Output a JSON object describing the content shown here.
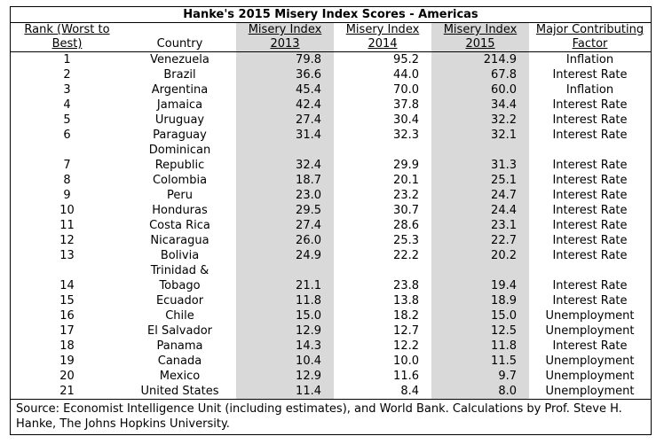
{
  "title": "Hanke's 2015 Misery Index Scores - Americas",
  "headers": {
    "rank": "Rank (Worst to Best)",
    "country": "Country",
    "mi2013": "Misery Index 2013",
    "mi2014": "Misery Index 2014",
    "mi2015": "Misery Index 2015",
    "factor": "Major Contributing Factor"
  },
  "rows": [
    {
      "rank": "1",
      "country": "Venezuela",
      "y2013": "79.8",
      "y2014": "95.2",
      "y2015": "214.9",
      "factor": "Inflation"
    },
    {
      "rank": "2",
      "country": "Brazil",
      "y2013": "36.6",
      "y2014": "44.0",
      "y2015": "67.8",
      "factor": "Interest Rate"
    },
    {
      "rank": "3",
      "country": "Argentina",
      "y2013": "45.4",
      "y2014": "70.0",
      "y2015": "60.0",
      "factor": "Inflation"
    },
    {
      "rank": "4",
      "country": "Jamaica",
      "y2013": "42.4",
      "y2014": "37.8",
      "y2015": "34.4",
      "factor": "Interest Rate"
    },
    {
      "rank": "5",
      "country": "Uruguay",
      "y2013": "27.4",
      "y2014": "30.4",
      "y2015": "32.2",
      "factor": "Interest Rate"
    },
    {
      "rank": "6",
      "country": "Paraguay",
      "y2013": "31.4",
      "y2014": "32.3",
      "y2015": "32.1",
      "factor": "Interest Rate"
    },
    {
      "rank": "7",
      "country": "Dominican Republic",
      "y2013": "32.4",
      "y2014": "29.9",
      "y2015": "31.3",
      "factor": "Interest Rate"
    },
    {
      "rank": "8",
      "country": "Colombia",
      "y2013": "18.7",
      "y2014": "20.1",
      "y2015": "25.1",
      "factor": "Interest Rate"
    },
    {
      "rank": "9",
      "country": "Peru",
      "y2013": "23.0",
      "y2014": "23.2",
      "y2015": "24.7",
      "factor": "Interest Rate"
    },
    {
      "rank": "10",
      "country": "Honduras",
      "y2013": "29.5",
      "y2014": "30.7",
      "y2015": "24.4",
      "factor": "Interest Rate"
    },
    {
      "rank": "11",
      "country": "Costa Rica",
      "y2013": "27.4",
      "y2014": "28.6",
      "y2015": "23.1",
      "factor": "Interest Rate"
    },
    {
      "rank": "12",
      "country": "Nicaragua",
      "y2013": "26.0",
      "y2014": "25.3",
      "y2015": "22.7",
      "factor": "Interest Rate"
    },
    {
      "rank": "13",
      "country": "Bolivia",
      "y2013": "24.9",
      "y2014": "22.2",
      "y2015": "20.2",
      "factor": "Interest Rate"
    },
    {
      "rank": "14",
      "country": "Trinidad & Tobago",
      "y2013": "21.1",
      "y2014": "23.8",
      "y2015": "19.4",
      "factor": "Interest Rate"
    },
    {
      "rank": "15",
      "country": "Ecuador",
      "y2013": "11.8",
      "y2014": "13.8",
      "y2015": "18.9",
      "factor": "Interest Rate"
    },
    {
      "rank": "16",
      "country": "Chile",
      "y2013": "15.0",
      "y2014": "18.2",
      "y2015": "15.0",
      "factor": "Unemployment"
    },
    {
      "rank": "17",
      "country": "El Salvador",
      "y2013": "12.9",
      "y2014": "12.7",
      "y2015": "12.5",
      "factor": "Unemployment"
    },
    {
      "rank": "18",
      "country": "Panama",
      "y2013": "14.3",
      "y2014": "12.2",
      "y2015": "11.8",
      "factor": "Interest Rate"
    },
    {
      "rank": "19",
      "country": "Canada",
      "y2013": "10.4",
      "y2014": "10.0",
      "y2015": "11.5",
      "factor": "Unemployment"
    },
    {
      "rank": "20",
      "country": "Mexico",
      "y2013": "12.9",
      "y2014": "11.6",
      "y2015": "9.7",
      "factor": "Unemployment"
    },
    {
      "rank": "21",
      "country": "United States",
      "y2013": "11.4",
      "y2014": "8.4",
      "y2015": "8.0",
      "factor": "Unemployment"
    }
  ],
  "source": "Source: Economist Intelligence Unit (including estimates), and World Bank. Calculations by Prof. Steve H. Hanke, The Johns Hopkins University.",
  "colors": {
    "shade": "#d9d9d9",
    "border": "#000000"
  }
}
